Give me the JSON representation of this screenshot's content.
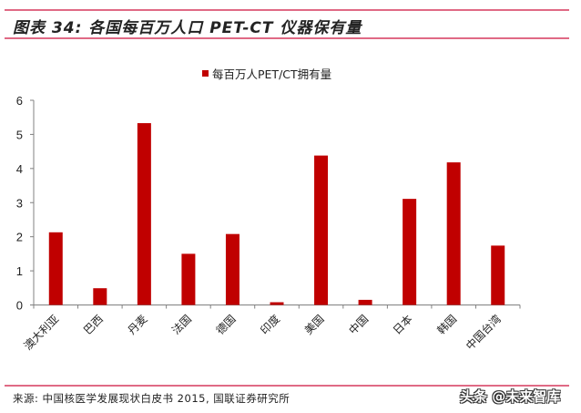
{
  "figure": {
    "title": "图表 34: 各国每百万人口 PET-CT 仪器保有量",
    "source": "来源: 中国核医学发展现状白皮书 2015, 国联证券研究所",
    "watermark": "头条 @未来智库"
  },
  "colors": {
    "bar": "#C00000",
    "rule": "#E06A85",
    "axis": "#808080"
  },
  "chart_data": {
    "type": "bar",
    "title": "图表 34: 各国每百万人口 PET-CT 仪器保有量",
    "xlabel": "",
    "ylabel": "",
    "ylim": [
      0,
      6
    ],
    "yticks": [
      0,
      1,
      2,
      3,
      4,
      5,
      6
    ],
    "grid": false,
    "legend_position": "top",
    "categories": [
      "澳大利亚",
      "巴西",
      "丹麦",
      "法国",
      "德国",
      "印度",
      "美国",
      "中国",
      "日本",
      "韩国",
      "中国台湾"
    ],
    "series": [
      {
        "name": "每百万人PET/CT拥有量",
        "color": "#C00000",
        "values": [
          2.13,
          0.49,
          5.33,
          1.5,
          2.08,
          0.08,
          4.38,
          0.15,
          3.11,
          4.18,
          1.74
        ]
      }
    ]
  }
}
